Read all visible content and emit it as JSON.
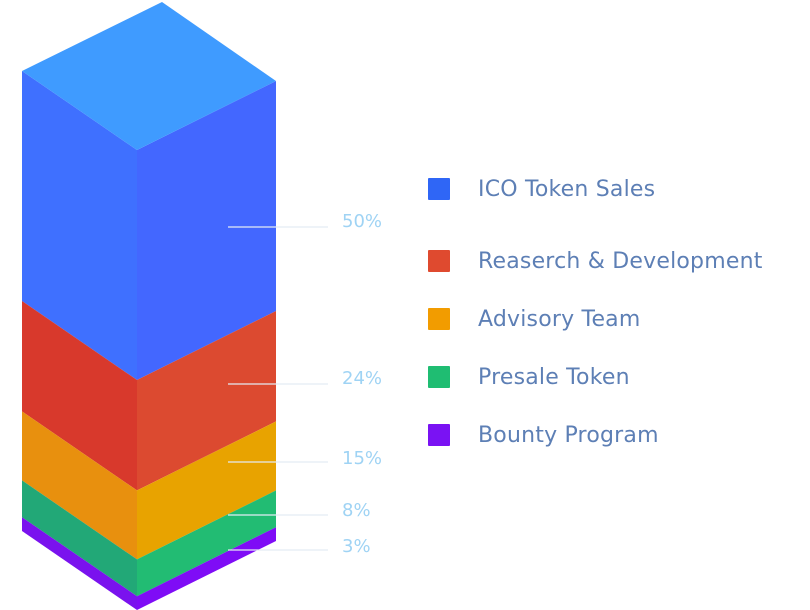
{
  "chart_data": {
    "type": "stacked-3d-bar",
    "series": [
      {
        "name": "ICO Token Sales",
        "value": 50,
        "label": "50%",
        "top": "#3f9bff",
        "left": "#3f70ff",
        "right": "#4367ff",
        "swatch": "#2f66f6"
      },
      {
        "name": "Reaserch & Development",
        "value": 24,
        "label": "24%",
        "top": "#e14a2c",
        "left": "#d8392c",
        "right": "#dc4a30",
        "swatch": "#df4a2f"
      },
      {
        "name": "Advisory Team",
        "value": 15,
        "label": "15%",
        "top": "#f3a900",
        "left": "#e8900e",
        "right": "#e8a300",
        "swatch": "#f29c00"
      },
      {
        "name": "Presale Token",
        "value": 8,
        "label": "8%",
        "top": "#2cc87a",
        "left": "#22a877",
        "right": "#22bc73",
        "swatch": "#1fbd72"
      },
      {
        "name": "Bounty Program",
        "value": 3,
        "label": "3%",
        "top": "#8a1fff",
        "left": "#7a12ee",
        "right": "#7f0cf6",
        "swatch": "#7a12f3"
      }
    ]
  },
  "colors": {
    "legend_text": "#5d7fb5",
    "percent_text": "#9fd3f4",
    "leader_line": "#e4ecf4"
  }
}
